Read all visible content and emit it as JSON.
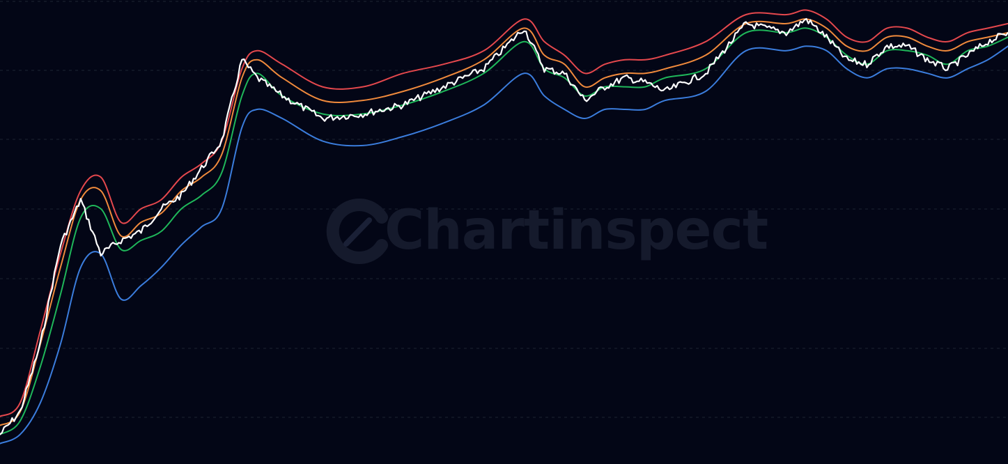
{
  "watermark": {
    "text": "Chartinspect"
  },
  "colors": {
    "background": "#030616",
    "grid": "#1e2433",
    "watermark": "#151a2c",
    "price": "#ffffff",
    "band_red": "#e5484d",
    "band_orange": "#f08a3c",
    "band_green": "#1fb75a",
    "band_blue": "#3b7ddd"
  },
  "chart_data": {
    "type": "line",
    "grid": true,
    "legend": "none",
    "x_range": [
      0,
      100
    ],
    "y_range": [
      0,
      100
    ],
    "x": [
      0,
      2,
      4,
      6,
      8,
      10,
      12,
      14,
      16,
      18,
      20,
      22,
      24,
      25.5,
      28,
      32,
      36,
      40,
      44,
      48,
      52,
      54,
      56,
      58,
      60,
      62,
      64,
      66,
      70,
      74,
      78,
      80,
      82,
      84,
      86,
      88,
      90,
      92,
      94,
      96,
      98,
      100
    ],
    "series": [
      {
        "key": "band_red",
        "values": [
          9,
          12,
          28,
          45,
          59,
          62,
          52,
          55,
          57,
          62,
          65,
          70,
          86,
          90,
          87,
          82,
          82,
          85,
          87,
          90,
          97,
          92,
          89,
          85,
          87,
          88,
          88,
          89,
          92,
          98,
          98,
          99,
          97,
          93,
          92,
          95,
          95,
          93,
          92,
          94,
          95,
          96
        ]
      },
      {
        "key": "band_orange",
        "values": [
          7,
          10,
          25,
          42,
          57,
          59,
          49,
          52,
          54,
          59,
          62,
          67,
          84,
          88,
          84,
          79,
          79,
          81,
          84,
          88,
          95,
          89,
          87,
          82,
          84,
          85,
          85,
          86,
          89,
          96,
          96,
          97,
          95,
          91,
          90,
          93,
          93,
          91,
          90,
          92,
          93,
          94
        ]
      },
      {
        "key": "band_green",
        "values": [
          5,
          8,
          20,
          36,
          53,
          55,
          46,
          48,
          50,
          55,
          58,
          63,
          80,
          85,
          80,
          76,
          76,
          78,
          81,
          85,
          92,
          86,
          84,
          80,
          82,
          82,
          82,
          84,
          86,
          94,
          94,
          95,
          93,
          89,
          87,
          90,
          90,
          89,
          87,
          90,
          91,
          93
        ]
      },
      {
        "key": "band_blue",
        "values": [
          3,
          5,
          12,
          25,
          42,
          45,
          35,
          38,
          42,
          47,
          51,
          55,
          73,
          77,
          75,
          70,
          69,
          71,
          74,
          78,
          85,
          80,
          77,
          75,
          77,
          77,
          77,
          79,
          81,
          90,
          90,
          91,
          90,
          86,
          84,
          86,
          86,
          85,
          84,
          86,
          88,
          91
        ]
      },
      {
        "key": "price",
        "values": [
          5,
          10,
          25,
          47,
          57,
          45,
          48,
          50,
          55,
          58,
          64,
          70,
          88,
          84,
          80,
          75,
          76,
          78,
          82,
          86,
          95,
          86,
          85,
          79,
          82,
          84,
          83,
          81,
          85,
          96,
          94,
          97,
          93,
          88,
          87,
          91,
          91,
          88,
          86,
          89,
          92,
          94
        ]
      }
    ]
  }
}
